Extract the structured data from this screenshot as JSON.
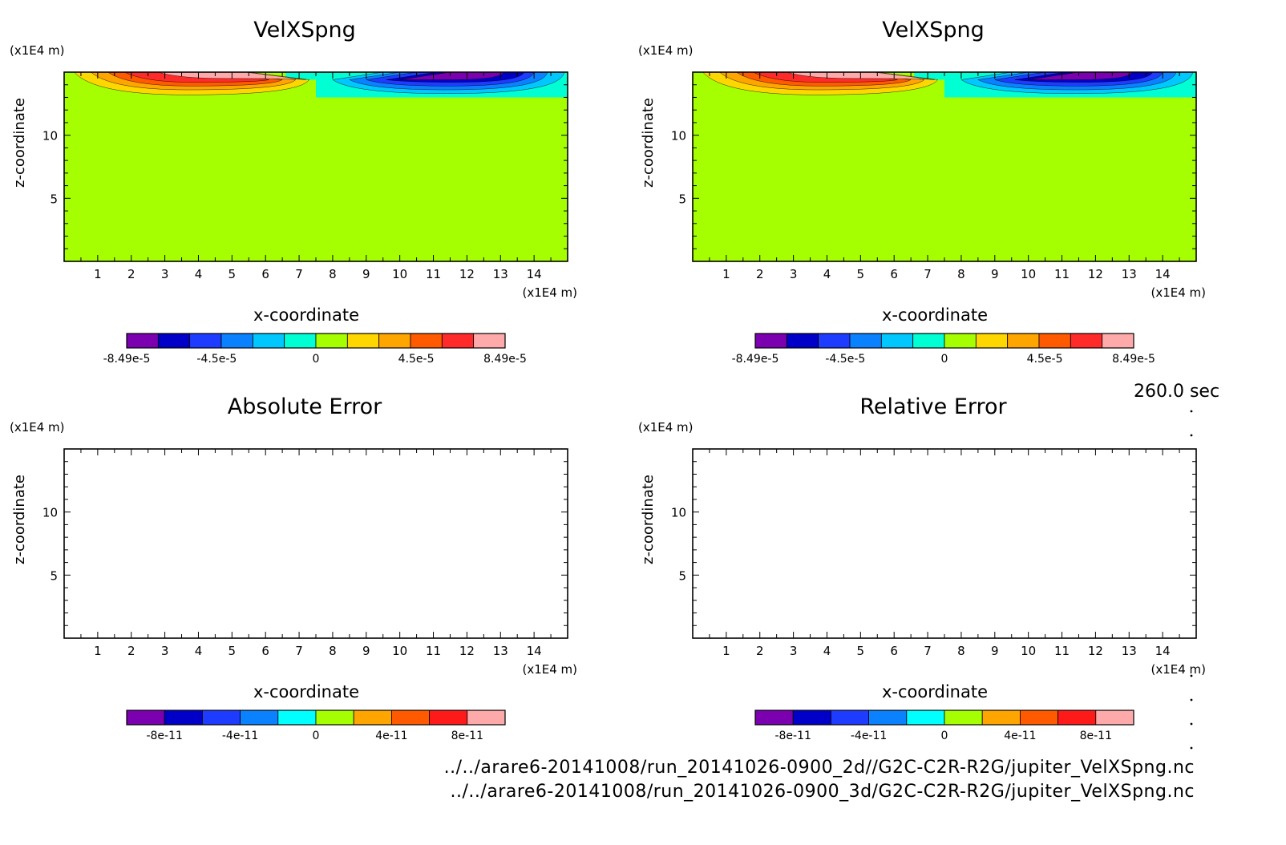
{
  "time_label": "260.0 sec",
  "footer": {
    "file_2d": "../../arare6-20141008/run_20141026-0900_2d//G2C-C2R-R2G/jupiter_VelXSpng.nc",
    "file_3d": "../../arare6-20141008/run_20141026-0900_3d/G2C-C2R-R2G/jupiter_VelXSpng.nc"
  },
  "chart_data": [
    {
      "type": "heatmap",
      "title": "VelXSpng",
      "xlabel": "x-coordinate",
      "ylabel": "z-coordinate",
      "x_unit": "(x1E4 m)",
      "y_unit": "(x1E4 m)",
      "xlim": [
        0,
        15
      ],
      "ylim": [
        0,
        15
      ],
      "x_ticks": [
        "1",
        "2",
        "3",
        "4",
        "5",
        "6",
        "7",
        "8",
        "9",
        "10",
        "11",
        "12",
        "13",
        "14"
      ],
      "y_ticks": [
        "5",
        "10"
      ],
      "colorbar_labels": [
        "-8.49e-5",
        "-4.5e-5",
        "0",
        "4.5e-5",
        "8.49e-5"
      ],
      "colorbar_colors": [
        "#7a00b0",
        "#0000c8",
        "#1e3cff",
        "#0a82ff",
        "#00c8ff",
        "#00ffd2",
        "#a6ff00",
        "#ffd700",
        "#ffa500",
        "#ff5a00",
        "#ff2a2a",
        "#ffaaaa"
      ]
    },
    {
      "type": "heatmap",
      "title": "VelXSpng",
      "xlabel": "x-coordinate",
      "ylabel": "z-coordinate",
      "x_unit": "(x1E4 m)",
      "y_unit": "(x1E4 m)",
      "xlim": [
        0,
        15
      ],
      "ylim": [
        0,
        15
      ],
      "x_ticks": [
        "1",
        "2",
        "3",
        "4",
        "5",
        "6",
        "7",
        "8",
        "9",
        "10",
        "11",
        "12",
        "13",
        "14"
      ],
      "y_ticks": [
        "5",
        "10"
      ],
      "colorbar_labels": [
        "-8.49e-5",
        "-4.5e-5",
        "0",
        "4.5e-5",
        "8.49e-5"
      ],
      "colorbar_colors": [
        "#7a00b0",
        "#0000c8",
        "#1e3cff",
        "#0a82ff",
        "#00c8ff",
        "#00ffd2",
        "#a6ff00",
        "#ffd700",
        "#ffa500",
        "#ff5a00",
        "#ff2a2a",
        "#ffaaaa"
      ]
    },
    {
      "type": "heatmap",
      "title": "Absolute Error",
      "xlabel": "x-coordinate",
      "ylabel": "z-coordinate",
      "x_unit": "(x1E4 m)",
      "y_unit": "(x1E4 m)",
      "xlim": [
        0,
        15
      ],
      "ylim": [
        0,
        15
      ],
      "x_ticks": [
        "1",
        "2",
        "3",
        "4",
        "5",
        "6",
        "7",
        "8",
        "9",
        "10",
        "11",
        "12",
        "13",
        "14"
      ],
      "y_ticks": [
        "5",
        "10"
      ],
      "colorbar_labels": [
        "-8e-11",
        "-4e-11",
        "0",
        "4e-11",
        "8e-11"
      ],
      "colorbar_colors": [
        "#7a00b0",
        "#0000c8",
        "#1e3cff",
        "#0a82ff",
        "#00ffff",
        "#a6ff00",
        "#ffa500",
        "#ff5a00",
        "#ff1a1a",
        "#ffaaaa"
      ]
    },
    {
      "type": "heatmap",
      "title": "Relative Error",
      "xlabel": "x-coordinate",
      "ylabel": "z-coordinate",
      "x_unit": "(x1E4 m)",
      "y_unit": "(x1E4 m)",
      "xlim": [
        0,
        15
      ],
      "ylim": [
        0,
        15
      ],
      "x_ticks": [
        "1",
        "2",
        "3",
        "4",
        "5",
        "6",
        "7",
        "8",
        "9",
        "10",
        "11",
        "12",
        "13",
        "14"
      ],
      "y_ticks": [
        "5",
        "10"
      ],
      "colorbar_labels": [
        "-8e-11",
        "-4e-11",
        "0",
        "4e-11",
        "8e-11"
      ],
      "colorbar_colors": [
        "#7a00b0",
        "#0000c8",
        "#1e3cff",
        "#0a82ff",
        "#00ffff",
        "#a6ff00",
        "#ffa500",
        "#ff5a00",
        "#ff1a1a",
        "#ffaaaa"
      ]
    }
  ]
}
